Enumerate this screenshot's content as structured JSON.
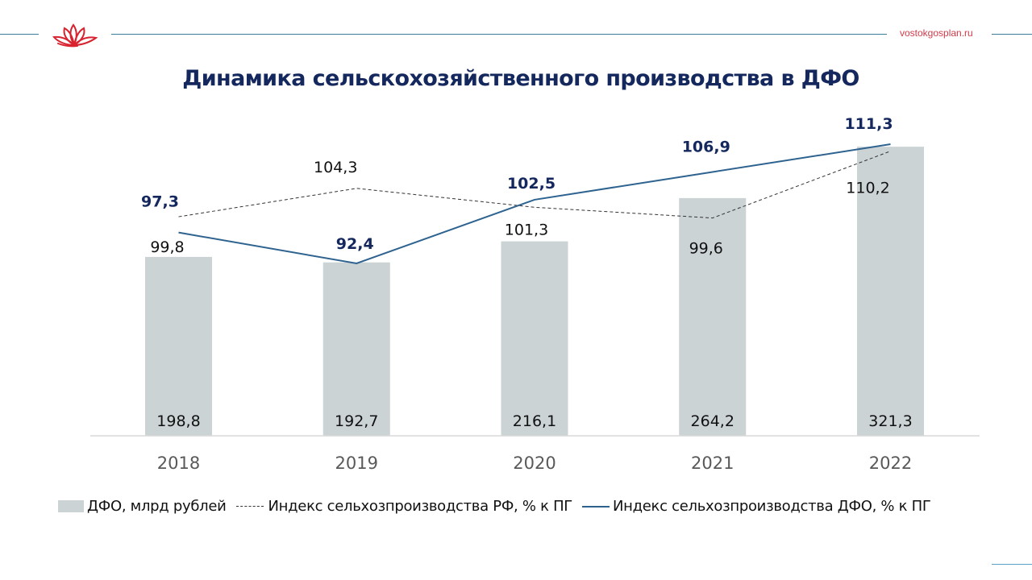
{
  "header": {
    "site": "vostokgosplan.ru",
    "logo_icon": "lotus-logo-icon"
  },
  "colors": {
    "bar": "#cbd3d5",
    "dfo_line": "#2e6390",
    "rf_line": "#333333",
    "dfo_label": "#14285e",
    "title": "#14285e",
    "site": "#d23a4a",
    "rule": "#3d7d9a"
  },
  "chart_data": {
    "type": "bar",
    "title": "Динамика сельскохозяйственного производства в ДФО",
    "xlabel": "",
    "ylabel": "",
    "categories": [
      "2018",
      "2019",
      "2020",
      "2021",
      "2022"
    ],
    "grid": false,
    "legend_position": "bottom",
    "series": [
      {
        "name": "ДФО, млрд рублей",
        "kind": "bar",
        "values": [
          198.8,
          192.7,
          216.1,
          264.2,
          321.3
        ],
        "labels": [
          "198,8",
          "192,7",
          "216,1",
          "264,2",
          "321,3"
        ]
      },
      {
        "name": "Индекс сельхозпроизводства РФ, % к ПГ",
        "kind": "line-dashed",
        "values": [
          99.8,
          104.3,
          101.3,
          99.6,
          110.2
        ],
        "labels": [
          "99,8",
          "104,3",
          "101,3",
          "99,6",
          "110,2"
        ]
      },
      {
        "name": "Индекс сельхозпроизводства ДФО, % к ПГ",
        "kind": "line",
        "values": [
          97.3,
          92.4,
          102.5,
          106.9,
          111.3
        ],
        "labels": [
          "97,3",
          "92,4",
          "102,5",
          "106,9",
          "111,3"
        ]
      }
    ]
  }
}
